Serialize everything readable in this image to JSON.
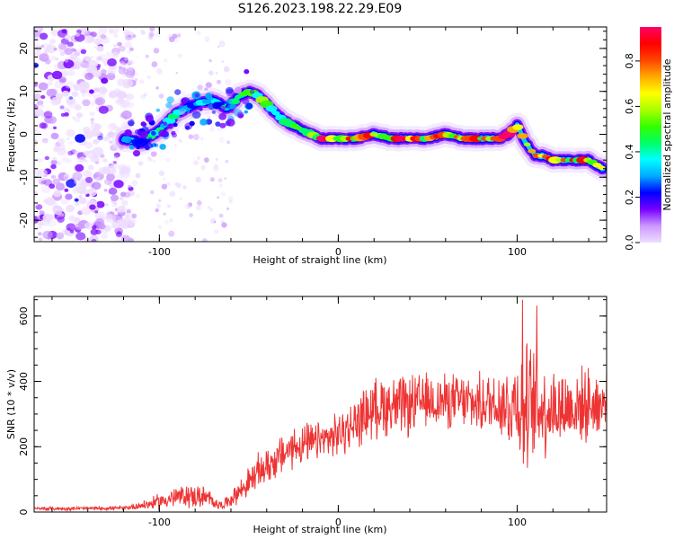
{
  "figure": {
    "title": "S126.2023.198.22.29.E09"
  },
  "chart_data": [
    {
      "type": "heatmap",
      "title": "S126.2023.198.22.29.E09",
      "xlabel": "Height of straight line (km)",
      "ylabel": "Frequency (Hz)",
      "xlim": [
        -170,
        150
      ],
      "ylim": [
        -25,
        25
      ],
      "x_ticks": [
        -100,
        0,
        100
      ],
      "y_ticks": [
        -20,
        -10,
        0,
        10,
        20
      ],
      "grid": false,
      "colorbar": {
        "label": "Normalized spectral amplitude",
        "range": [
          0.0,
          0.95
        ],
        "ticks": [
          0.0,
          0.2,
          0.4,
          0.6,
          0.8
        ],
        "colormap": [
          "#eeddff",
          "#cc99ff",
          "#7700ff",
          "#0000ff",
          "#00aaff",
          "#00ffff",
          "#00ff66",
          "#33ff00",
          "#aaff00",
          "#ffff00",
          "#ffaa00",
          "#ff4400",
          "#ff0000",
          "#ff0066"
        ]
      },
      "ridge": {
        "x": [
          -120,
          -110,
          -100,
          -90,
          -80,
          -70,
          -62,
          -55,
          -50,
          -45,
          -40,
          -35,
          -30,
          -25,
          -20,
          -15,
          -10,
          -5,
          0,
          10,
          20,
          30,
          40,
          50,
          60,
          70,
          80,
          90,
          95,
          100,
          105,
          110,
          115,
          120,
          130,
          140,
          148
        ],
        "y": [
          -1,
          -2,
          1,
          5,
          7,
          8,
          6,
          9,
          10,
          9,
          7,
          5,
          3,
          2,
          1,
          0,
          -1,
          -1,
          -1,
          -1,
          0,
          -1,
          -1,
          -1,
          0,
          -1,
          -1,
          -1,
          0,
          2,
          -2,
          -5,
          -5,
          -6,
          -6,
          -6,
          -8
        ]
      },
      "noise_region": {
        "x": [
          -170,
          -115
        ],
        "y": [
          -25,
          25
        ]
      }
    },
    {
      "type": "line",
      "xlabel": "Height of straight line (km)",
      "ylabel": "SNR (10 * v/v)",
      "xlim": [
        -170,
        150
      ],
      "ylim": [
        0,
        660
      ],
      "x_ticks": [
        -100,
        0,
        100
      ],
      "y_ticks": [
        0,
        200,
        400,
        600
      ],
      "grid": false,
      "color": "#ee3333",
      "envelope": {
        "x": [
          -170,
          -120,
          -105,
          -95,
          -85,
          -75,
          -65,
          -60,
          -52,
          -45,
          -35,
          -25,
          -15,
          -5,
          5,
          15,
          25,
          35,
          50,
          65,
          80,
          90,
          95,
          100,
          103,
          106,
          110,
          120,
          130,
          140,
          150
        ],
        "mean": [
          10,
          12,
          25,
          40,
          50,
          45,
          20,
          40,
          80,
          120,
          160,
          200,
          210,
          225,
          250,
          300,
          330,
          320,
          340,
          340,
          330,
          340,
          320,
          350,
          300,
          320,
          320,
          320,
          320,
          330,
          330
        ],
        "amplitude": [
          5,
          5,
          15,
          25,
          30,
          30,
          10,
          20,
          35,
          45,
          50,
          55,
          50,
          50,
          60,
          70,
          80,
          80,
          70,
          70,
          75,
          90,
          110,
          130,
          150,
          170,
          140,
          110,
          100,
          90,
          80
        ]
      },
      "peaks": [
        {
          "x": 103,
          "y": 650
        },
        {
          "x": 111,
          "y": 632
        }
      ]
    }
  ]
}
